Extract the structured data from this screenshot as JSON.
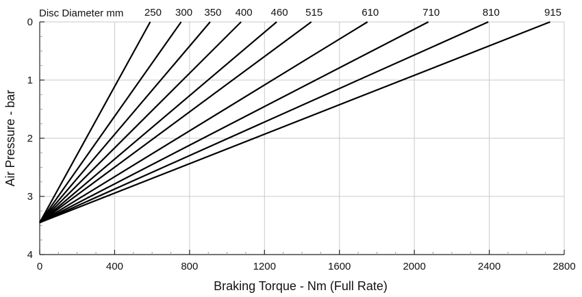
{
  "chart_data": {
    "type": "line",
    "title": "",
    "legend_title": "Disc Diameter mm",
    "xlabel": "Braking Torque - Nm (Full Rate)",
    "ylabel": "Air Pressure - bar",
    "xlim": [
      0,
      2800
    ],
    "ylim": [
      0,
      4
    ],
    "y_inverted": true,
    "x_ticks": [
      0,
      400,
      800,
      1200,
      1600,
      2000,
      2400,
      2800
    ],
    "y_ticks": [
      0,
      1,
      2,
      3,
      4
    ],
    "grid": true,
    "series": [
      {
        "name": "250",
        "points": [
          [
            0,
            3.45
          ],
          [
            590,
            0
          ]
        ]
      },
      {
        "name": "300",
        "points": [
          [
            0,
            3.45
          ],
          [
            755,
            0
          ]
        ]
      },
      {
        "name": "350",
        "points": [
          [
            0,
            3.45
          ],
          [
            910,
            0
          ]
        ]
      },
      {
        "name": "400",
        "points": [
          [
            0,
            3.45
          ],
          [
            1075,
            0
          ]
        ]
      },
      {
        "name": "460",
        "points": [
          [
            0,
            3.45
          ],
          [
            1265,
            0
          ]
        ]
      },
      {
        "name": "515",
        "points": [
          [
            0,
            3.45
          ],
          [
            1450,
            0
          ]
        ]
      },
      {
        "name": "610",
        "points": [
          [
            0,
            3.45
          ],
          [
            1750,
            0
          ]
        ]
      },
      {
        "name": "710",
        "points": [
          [
            0,
            3.45
          ],
          [
            2075,
            0
          ]
        ]
      },
      {
        "name": "810",
        "points": [
          [
            0,
            3.45
          ],
          [
            2395,
            0
          ]
        ]
      },
      {
        "name": "915",
        "points": [
          [
            0,
            3.45
          ],
          [
            2725,
            0
          ]
        ]
      }
    ]
  }
}
